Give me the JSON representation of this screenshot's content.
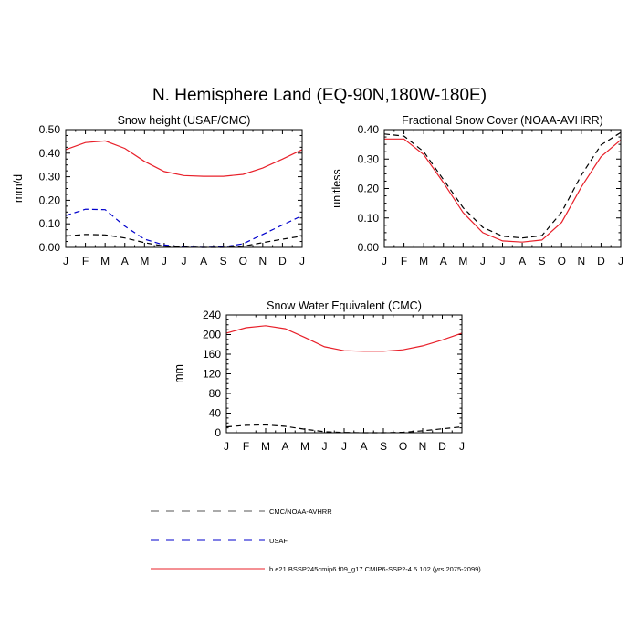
{
  "figure": {
    "title": "N. Hemisphere Land (EQ-90N,180W-180E)"
  },
  "legend": {
    "placement": "bottom",
    "entries": [
      {
        "label": "CMC/NOAA-AVHRR",
        "color": "#000000",
        "style": "dashed"
      },
      {
        "label": "USAF",
        "color": "#0000cc",
        "style": "dashed"
      },
      {
        "label": "b.e21.BSSP245cmip6.f09_g17.CMIP6-SSP2-4.5.102 (yrs 2075-2099)",
        "color": "#e8202a",
        "style": "solid"
      }
    ]
  },
  "chart_data": [
    {
      "type": "line",
      "title": "Snow height (USAF/CMC)",
      "xlabel": "",
      "ylabel": "mm/d",
      "categories": [
        "J",
        "F",
        "M",
        "A",
        "M",
        "J",
        "J",
        "A",
        "S",
        "O",
        "N",
        "D",
        "J"
      ],
      "yticks": [
        "0.00",
        "0.10",
        "0.20",
        "0.30",
        "0.40",
        "0.50"
      ],
      "ylim": [
        0,
        0.5
      ],
      "series": [
        {
          "legend_index": 2,
          "color": "#e8202a",
          "style": "solid",
          "values": [
            0.415,
            0.445,
            0.452,
            0.42,
            0.365,
            0.322,
            0.305,
            0.302,
            0.302,
            0.31,
            0.337,
            0.375,
            0.415
          ]
        },
        {
          "legend_index": 1,
          "color": "#0000cc",
          "style": "dashed",
          "values": [
            0.135,
            0.162,
            0.16,
            0.09,
            0.035,
            0.01,
            0.002,
            0.0,
            0.002,
            0.015,
            0.055,
            0.095,
            0.135
          ]
        },
        {
          "legend_index": 0,
          "color": "#000000",
          "style": "dashed",
          "values": [
            0.048,
            0.055,
            0.053,
            0.04,
            0.02,
            0.005,
            0.001,
            0.0,
            0.0,
            0.005,
            0.02,
            0.035,
            0.048
          ]
        }
      ]
    },
    {
      "type": "line",
      "title": "Fractional Snow Cover (NOAA-AVHRR)",
      "xlabel": "",
      "ylabel": "unitless",
      "categories": [
        "J",
        "F",
        "M",
        "A",
        "M",
        "J",
        "J",
        "A",
        "S",
        "O",
        "N",
        "D",
        "J"
      ],
      "yticks": [
        "0.00",
        "0.10",
        "0.20",
        "0.30",
        "0.40"
      ],
      "ylim": [
        0,
        0.4
      ],
      "series": [
        {
          "legend_index": 2,
          "color": "#e8202a",
          "style": "solid",
          "values": [
            0.368,
            0.368,
            0.315,
            0.22,
            0.118,
            0.05,
            0.022,
            0.018,
            0.025,
            0.085,
            0.205,
            0.308,
            0.365
          ]
        },
        {
          "legend_index": 0,
          "color": "#000000",
          "style": "dashed",
          "values": [
            0.385,
            0.378,
            0.325,
            0.23,
            0.135,
            0.068,
            0.038,
            0.032,
            0.04,
            0.12,
            0.245,
            0.348,
            0.39
          ]
        }
      ]
    },
    {
      "type": "line",
      "title": "Snow Water Equivalent (CMC)",
      "xlabel": "",
      "ylabel": "mm",
      "categories": [
        "J",
        "F",
        "M",
        "A",
        "M",
        "J",
        "J",
        "A",
        "S",
        "O",
        "N",
        "D",
        "J"
      ],
      "yticks": [
        "0",
        "40",
        "80",
        "120",
        "160",
        "200",
        "240"
      ],
      "ylim": [
        0,
        240
      ],
      "series": [
        {
          "legend_index": 2,
          "color": "#e8202a",
          "style": "solid",
          "values": [
            203,
            214,
            218,
            212,
            194,
            175,
            167,
            166,
            166,
            169,
            177,
            189,
            203
          ]
        },
        {
          "legend_index": 0,
          "color": "#000000",
          "style": "dashed",
          "values": [
            12,
            15,
            16,
            13,
            7,
            2,
            0.5,
            0,
            0,
            1,
            4,
            8,
            12
          ]
        }
      ]
    }
  ]
}
